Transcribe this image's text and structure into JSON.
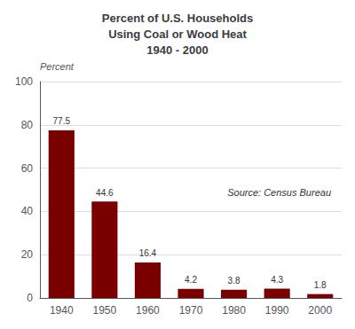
{
  "chart_data": {
    "type": "bar",
    "title": "Percent of U.S. Households\nUsing Coal or Wood Heat\n1940 - 2000",
    "categories": [
      "1940",
      "1950",
      "1960",
      "1970",
      "1980",
      "1990",
      "2000"
    ],
    "values": [
      77.5,
      44.6,
      16.4,
      4.2,
      3.8,
      4.3,
      1.8
    ],
    "color": "#7a0000",
    "ylim": [
      0,
      100
    ],
    "yticks": [
      0,
      20,
      40,
      60,
      80,
      100
    ],
    "ylabel": "Percent",
    "annotations": [
      "Source: Census Bureau"
    ],
    "grid": true,
    "data_labels": true
  }
}
